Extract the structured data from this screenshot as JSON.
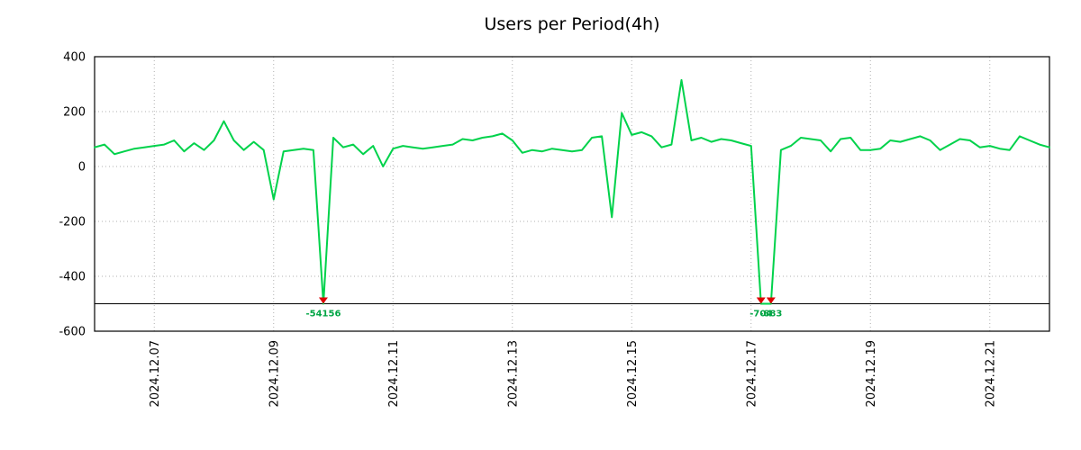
{
  "chart_data": {
    "type": "line",
    "title": "Users per Period(4h)",
    "xlabel": "",
    "ylabel": "",
    "ylim": [
      -600,
      400
    ],
    "y_ticks": [
      400,
      200,
      0,
      -200,
      -400,
      -600
    ],
    "x_tick_labels": [
      "2024.12.07",
      "2024.12.09",
      "2024.12.11",
      "2024.12.13",
      "2024.12.15",
      "2024.12.17",
      "2024.12.19",
      "2024.12.21"
    ],
    "x_tick_indices": [
      6,
      18,
      30,
      42,
      54,
      66,
      78,
      90
    ],
    "grid": true,
    "legend": "none",
    "clip_value": -500,
    "series_color": "#00d24b",
    "annotation_color": "#00a544",
    "marker_color": "#dd0000",
    "grid_color": "#b0b0b0",
    "values": [
      70,
      80,
      45,
      55,
      65,
      70,
      75,
      80,
      95,
      55,
      85,
      60,
      95,
      165,
      95,
      60,
      90,
      60,
      -120,
      55,
      60,
      65,
      60,
      -54156,
      105,
      70,
      80,
      45,
      75,
      0,
      65,
      75,
      70,
      65,
      70,
      75,
      80,
      100,
      95,
      105,
      110,
      120,
      95,
      50,
      60,
      55,
      65,
      60,
      55,
      60,
      105,
      110,
      -185,
      195,
      115,
      125,
      110,
      70,
      80,
      315,
      95,
      105,
      90,
      100,
      95,
      85,
      75,
      -704,
      -883,
      60,
      75,
      105,
      100,
      95,
      55,
      100,
      105,
      60,
      60,
      65,
      95,
      90,
      100,
      110,
      95,
      60,
      80,
      100,
      95,
      70,
      75,
      65,
      60,
      110,
      95,
      80,
      70
    ],
    "annotations": [
      {
        "index": 23,
        "label": "-54156"
      },
      {
        "index": 67,
        "label": "-704"
      },
      {
        "index": 68,
        "label": "-883"
      }
    ]
  }
}
